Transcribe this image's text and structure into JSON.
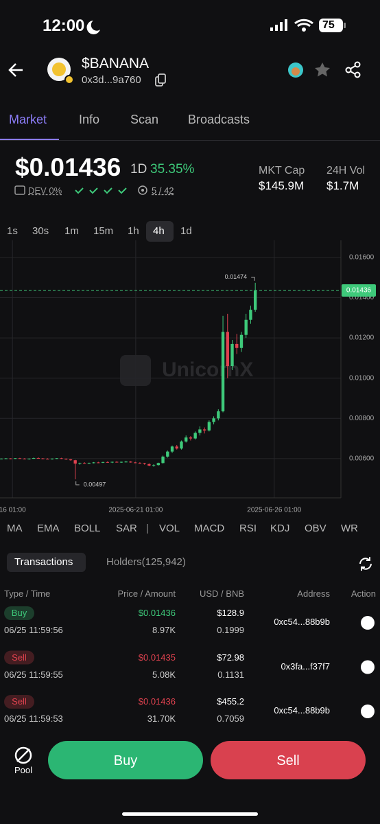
{
  "status": {
    "time": "12:00",
    "battery": "75"
  },
  "token": {
    "symbol": "$BANANA",
    "address": "0x3d...9a760"
  },
  "tabs": [
    "Market",
    "Info",
    "Scan",
    "Broadcasts"
  ],
  "price": {
    "value": "$0.01436",
    "period": "1D",
    "change": "35.35%",
    "dev": "DEV 0%",
    "ratio": "5 / 42"
  },
  "stats": [
    {
      "label": "MKT Cap",
      "value": "$145.9M"
    },
    {
      "label": "24H Vol",
      "value": "$1.7M"
    }
  ],
  "intervals": [
    "1s",
    "30s",
    "1m",
    "15m",
    "1h",
    "4h",
    "1d"
  ],
  "chart_data": {
    "type": "candlestick",
    "watermark": "UnicornX",
    "up_color": "#3ec97a",
    "down_color": "#e0424f",
    "grid": true,
    "open": [
      0.00598,
      0.006,
      0.00601,
      0.00599,
      0.00602,
      0.006,
      0.00598,
      0.006,
      0.00603,
      0.00601,
      0.00599,
      0.00597,
      0.006,
      0.00602,
      0.00599,
      0.00596,
      0.00592,
      0.00575,
      0.00578,
      0.00576,
      0.00579,
      0.00581,
      0.0058,
      0.00583,
      0.00582,
      0.00584,
      0.00582,
      0.00584,
      0.00585,
      0.00581,
      0.00579,
      0.00576,
      0.00573,
      0.00565,
      0.00568,
      0.00578,
      0.0061,
      0.00635,
      0.0066,
      0.0065,
      0.00685,
      0.00705,
      0.007,
      0.00728,
      0.00745,
      0.0074,
      0.00782,
      0.008,
      0.00835,
      0.0123,
      0.0106,
      0.0117,
      0.0115,
      0.01215,
      0.0129,
      0.0134
    ],
    "high": [
      0.00601,
      0.00603,
      0.00602,
      0.00603,
      0.00604,
      0.00602,
      0.00601,
      0.00605,
      0.00606,
      0.00603,
      0.00602,
      0.00601,
      0.00603,
      0.00604,
      0.00601,
      0.00598,
      0.00594,
      0.0058,
      0.00582,
      0.0058,
      0.00583,
      0.00584,
      0.00584,
      0.00586,
      0.00585,
      0.00587,
      0.00585,
      0.00588,
      0.00587,
      0.00584,
      0.00582,
      0.00579,
      0.00576,
      0.00572,
      0.0058,
      0.00615,
      0.0064,
      0.00665,
      0.00668,
      0.0069,
      0.00715,
      0.00712,
      0.00735,
      0.0076,
      0.00755,
      0.0079,
      0.0081,
      0.00845,
      0.0131,
      0.0132,
      0.0119,
      0.0122,
      0.0123,
      0.0132,
      0.0136,
      0.01474
    ],
    "low": [
      0.00596,
      0.00598,
      0.00597,
      0.00598,
      0.00599,
      0.00596,
      0.00595,
      0.00599,
      0.006,
      0.00597,
      0.00596,
      0.00595,
      0.00598,
      0.00598,
      0.00594,
      0.0059,
      0.00497,
      0.0057,
      0.00574,
      0.00573,
      0.00576,
      0.00577,
      0.00578,
      0.00579,
      0.00578,
      0.0058,
      0.00579,
      0.00581,
      0.0058,
      0.00577,
      0.00574,
      0.0057,
      0.00562,
      0.0056,
      0.00565,
      0.00575,
      0.00605,
      0.00628,
      0.00645,
      0.00645,
      0.0068,
      0.0069,
      0.00695,
      0.00715,
      0.00725,
      0.00735,
      0.0077,
      0.0079,
      0.0083,
      0.01,
      0.0104,
      0.0112,
      0.0113,
      0.012,
      0.0127,
      0.0133
    ],
    "close": [
      0.006,
      0.00601,
      0.00599,
      0.00602,
      0.006,
      0.00598,
      0.006,
      0.00603,
      0.00601,
      0.00599,
      0.00597,
      0.006,
      0.00602,
      0.00599,
      0.00596,
      0.00592,
      0.00575,
      0.00578,
      0.00576,
      0.00579,
      0.00581,
      0.0058,
      0.00583,
      0.00582,
      0.00584,
      0.00582,
      0.00584,
      0.00585,
      0.00581,
      0.00579,
      0.00576,
      0.00573,
      0.00565,
      0.00568,
      0.00578,
      0.0061,
      0.00635,
      0.0066,
      0.0065,
      0.00685,
      0.00705,
      0.007,
      0.00728,
      0.00745,
      0.0074,
      0.00782,
      0.008,
      0.00835,
      0.0123,
      0.0106,
      0.0117,
      0.0115,
      0.01215,
      0.0129,
      0.0134,
      0.01436
    ],
    "ylim": [
      0.00405,
      0.01668
    ],
    "yticks": [
      {
        "value": 0.006,
        "label": "0.00600"
      },
      {
        "value": 0.008,
        "label": "0.00800"
      },
      {
        "value": 0.01,
        "label": "0.01000"
      },
      {
        "value": 0.012,
        "label": "0.01200"
      },
      {
        "value": 0.014,
        "label": "0.01400"
      },
      {
        "value": 0.016,
        "label": "0.01600"
      }
    ],
    "xlim": [
      -0.3,
      73.55
    ],
    "xticks": [
      {
        "value": 2.4,
        "label": "16 01:00"
      },
      {
        "value": 29.1,
        "label": "2025-06-21 01:00"
      },
      {
        "value": 59.1,
        "label": "2025-06-26 01:00"
      }
    ]
  },
  "indicators": [
    "MA",
    "EMA",
    "BOLL",
    "SAR",
    "VOL",
    "MACD",
    "RSI",
    "KDJ",
    "OBV",
    "WR"
  ],
  "tx_tabs": [
    "Transactions",
    "Holders(125,942)"
  ],
  "table": {
    "headers": [
      "Type / Time",
      "Price / Amount",
      "USD / BNB",
      "Address",
      "Action"
    ],
    "rows": [
      {
        "type": "Buy",
        "color": "#3ec97a",
        "time": "06/25 11:59:56",
        "price": "$0.01436",
        "amount": "8.97K",
        "usd": "$128.9",
        "bnb": "0.1999",
        "address": "0xc54...88b9b"
      },
      {
        "type": "Sell",
        "color": "#e0424f",
        "time": "06/25 11:59:55",
        "price": "$0.01435",
        "amount": "5.08K",
        "usd": "$72.98",
        "bnb": "0.1131",
        "address": "0x3fa...f37f7"
      },
      {
        "type": "Sell",
        "color": "#e0424f",
        "time": "06/25 11:59:53",
        "price": "$0.01436",
        "amount": "31.70K",
        "usd": "$455.2",
        "bnb": "0.7059",
        "address": "0xc54...88b9b"
      }
    ]
  },
  "footer": {
    "pool": "Pool",
    "buy": "Buy",
    "sell": "Sell"
  }
}
